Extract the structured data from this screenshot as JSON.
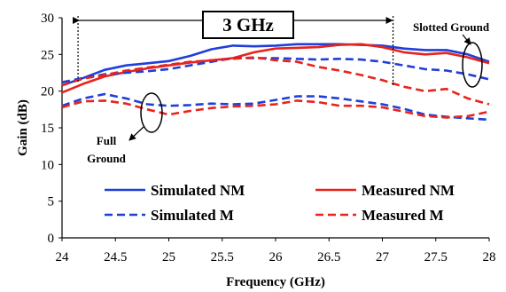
{
  "chart_data": {
    "type": "line",
    "xlabel": "Frequency (GHz)",
    "ylabel": "Gain (dB)",
    "xlim": [
      24,
      28
    ],
    "ylim": [
      0,
      30
    ],
    "xticks": [
      "24",
      "24.5",
      "25",
      "25.5",
      "26",
      "26.5",
      "27",
      "27.5",
      "28"
    ],
    "yticks": [
      "0",
      "5",
      "10",
      "15",
      "20",
      "25",
      "30"
    ],
    "grid": false,
    "legend_position": "lower-center",
    "series": [
      {
        "name": "Simulated NM",
        "color": "#1f3fd8",
        "dash": "solid",
        "x": [
          24.0,
          24.2,
          24.4,
          24.6,
          24.8,
          25.0,
          25.2,
          25.4,
          25.6,
          25.8,
          26.0,
          26.2,
          26.4,
          26.6,
          26.8,
          27.0,
          27.2,
          27.4,
          27.6,
          27.8,
          28.0
        ],
        "y": [
          20.8,
          21.8,
          22.9,
          23.5,
          23.8,
          24.1,
          24.8,
          25.7,
          26.2,
          26.1,
          26.2,
          26.4,
          26.4,
          26.4,
          26.3,
          26.2,
          25.8,
          25.6,
          25.6,
          25.0,
          24.0
        ]
      },
      {
        "name": "Measured NM",
        "color": "#e8231c",
        "dash": "solid",
        "x": [
          24.0,
          24.2,
          24.4,
          24.6,
          24.8,
          25.0,
          25.2,
          25.4,
          25.6,
          25.8,
          26.0,
          26.2,
          26.4,
          26.6,
          26.8,
          27.0,
          27.2,
          27.4,
          27.6,
          27.8,
          28.0
        ],
        "y": [
          19.8,
          21.0,
          22.0,
          22.6,
          23.1,
          23.5,
          23.9,
          24.2,
          24.5,
          25.3,
          25.8,
          25.9,
          26.0,
          26.3,
          26.4,
          26.0,
          25.3,
          25.0,
          25.2,
          24.6,
          23.8
        ]
      },
      {
        "name": "Simulated M",
        "color": "#1f3fd8",
        "dash": "dashed",
        "x": [
          24.0,
          24.2,
          24.4,
          24.6,
          24.8,
          25.0,
          25.2,
          25.4,
          25.6,
          25.8,
          26.0,
          26.2,
          26.4,
          26.6,
          26.8,
          27.0,
          27.2,
          27.4,
          27.6,
          27.8,
          28.0
        ],
        "y": [
          21.2,
          21.8,
          22.3,
          22.5,
          22.7,
          23.0,
          23.5,
          24.0,
          24.5,
          24.5,
          24.5,
          24.4,
          24.3,
          24.4,
          24.3,
          24.0,
          23.5,
          23.0,
          22.8,
          22.3,
          21.6
        ]
      },
      {
        "name": "Measured M",
        "color": "#e8231c",
        "dash": "dashed",
        "x": [
          24.0,
          24.2,
          24.4,
          24.6,
          24.8,
          25.0,
          25.2,
          25.4,
          25.6,
          25.8,
          26.0,
          26.2,
          26.4,
          26.6,
          26.8,
          27.0,
          27.2,
          27.4,
          27.6,
          27.8,
          28.0
        ],
        "y": [
          20.8,
          21.7,
          22.2,
          22.8,
          23.2,
          23.6,
          24.0,
          24.2,
          24.4,
          24.6,
          24.2,
          24.0,
          23.3,
          22.8,
          22.2,
          21.5,
          20.6,
          20.0,
          20.3,
          19.0,
          18.2
        ]
      },
      {
        "name": "Simulated M (Full Ground)",
        "color": "#1f3fd8",
        "dash": "dashed",
        "x": [
          24.0,
          24.2,
          24.4,
          24.6,
          24.8,
          25.0,
          25.2,
          25.4,
          25.6,
          25.8,
          26.0,
          26.2,
          26.4,
          26.6,
          26.8,
          27.0,
          27.2,
          27.4,
          27.6,
          27.8,
          28.0
        ],
        "y": [
          18.0,
          19.0,
          19.6,
          19.0,
          18.2,
          18.0,
          18.1,
          18.3,
          18.2,
          18.3,
          18.8,
          19.3,
          19.3,
          19.0,
          18.6,
          18.2,
          17.6,
          16.8,
          16.5,
          16.3,
          16.1
        ]
      },
      {
        "name": "Measured M (Full Ground)",
        "color": "#e8231c",
        "dash": "dashed",
        "x": [
          24.0,
          24.2,
          24.4,
          24.6,
          24.8,
          25.0,
          25.2,
          25.4,
          25.6,
          25.8,
          26.0,
          26.2,
          26.4,
          26.6,
          26.8,
          27.0,
          27.2,
          27.4,
          27.6,
          27.8,
          28.0
        ],
        "y": [
          17.8,
          18.6,
          18.7,
          18.3,
          17.5,
          16.8,
          17.3,
          17.7,
          17.9,
          18.0,
          18.2,
          18.7,
          18.5,
          18.0,
          18.0,
          17.8,
          17.2,
          16.6,
          16.4,
          16.6,
          17.2
        ]
      }
    ],
    "legend": [
      {
        "label": "Simulated NM",
        "color": "#1f3fd8",
        "dash": "solid"
      },
      {
        "label": "Measured NM",
        "color": "#e8231c",
        "dash": "solid"
      },
      {
        "label": "Simulated M",
        "color": "#1f3fd8",
        "dash": "dashed"
      },
      {
        "label": "Measured M",
        "color": "#e8231c",
        "dash": "dashed"
      }
    ],
    "annotations": {
      "bandwidth_label": "3 GHz",
      "bandwidth_range": [
        24.15,
        27.1
      ],
      "slotted_ground_label": "Slotted Ground",
      "full_ground_label_line1": "Full",
      "full_ground_label_line2": "Ground"
    }
  }
}
